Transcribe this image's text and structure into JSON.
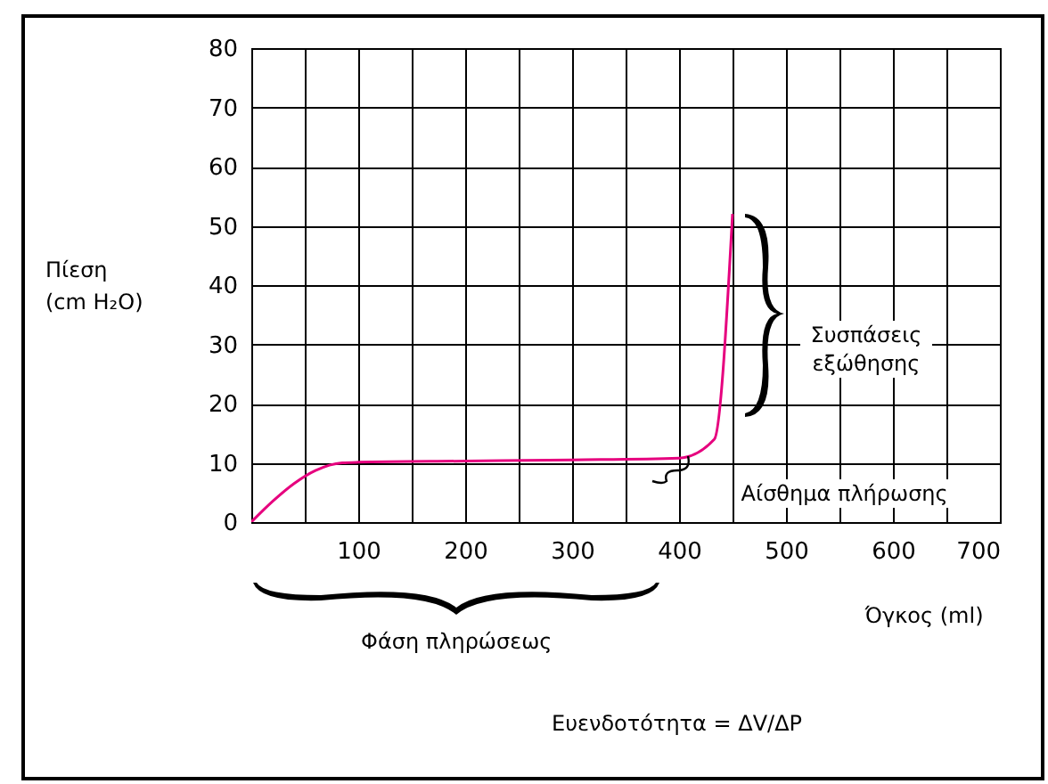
{
  "chart_data": {
    "type": "line",
    "xlabel": "Όγκος (ml)",
    "ylabel": "Πίεση (cm H₂O)",
    "x": [
      0,
      20,
      40,
      60,
      85,
      100,
      200,
      300,
      400,
      433,
      450
    ],
    "series": [
      {
        "color": "#e6007e",
        "values": [
          0,
          3.5,
          6.5,
          8.7,
          10,
          10.1,
          10.3,
          10.5,
          10.8,
          14,
          52
        ]
      }
    ],
    "xlim": [
      0,
      700
    ],
    "ylim": [
      0,
      80
    ],
    "xticks": [
      {
        "value": 0,
        "label": null
      },
      {
        "value": 50,
        "label": null
      },
      100,
      {
        "value": 150,
        "label": null
      },
      200,
      {
        "value": 250,
        "label": null
      },
      300,
      {
        "value": 350,
        "label": null
      },
      400,
      {
        "value": 450,
        "label": null
      },
      500,
      {
        "value": 550,
        "label": null
      },
      600,
      {
        "value": 650,
        "label": null
      },
      700
    ],
    "yticks": [
      0,
      10,
      20,
      30,
      40,
      50,
      60,
      70,
      80
    ],
    "grid": true,
    "annotations": [
      "Συσπάσεις εξώθησης",
      {
        "text": "Αίσθημα πλήρωσης",
        "x": 433,
        "y": 14
      },
      "Φάση πληρώσεως",
      "Ευενδοτότητα = ΔV/ΔP"
    ]
  }
}
